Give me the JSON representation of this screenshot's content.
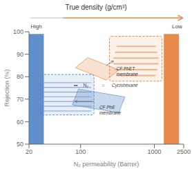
{
  "chart_data": {
    "type": "bar",
    "title": "True density (g/cm³)",
    "xlabel": "N₂ permeability (Barrer)",
    "ylabel": "Rejection (%)",
    "x": [
      25,
      1700
    ],
    "values": [
      99,
      99
    ],
    "colors": [
      "#6090CC",
      "#E8894A"
    ],
    "log": "x",
    "xlim": [
      20,
      2500
    ],
    "xticks": [
      20,
      100,
      1000,
      2500
    ],
    "ylim": [
      50,
      100
    ],
    "yticks": [
      50,
      60,
      70,
      80,
      90,
      100
    ],
    "grid": false,
    "annotations": [
      "High",
      "Low",
      "CF PhET\nmembrane",
      "CF PhE\nmembrane",
      "••",
      "N₂",
      "○",
      "Cyclohexane"
    ]
  }
}
